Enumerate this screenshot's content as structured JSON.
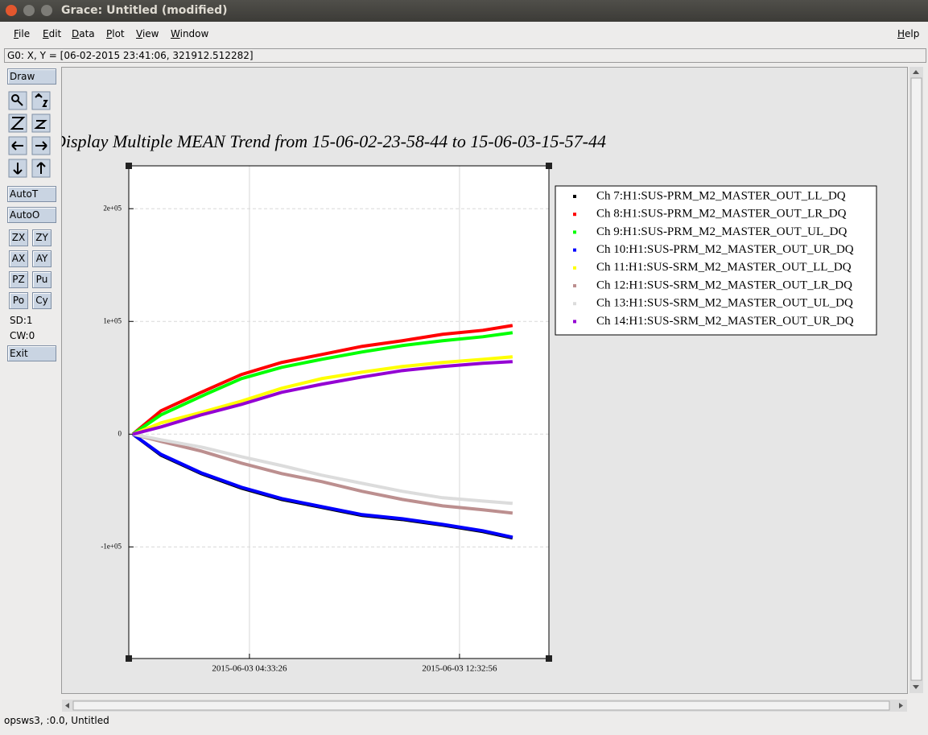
{
  "window": {
    "title": "Grace: Untitled (modified)"
  },
  "menu": [
    "File",
    "Edit",
    "Data",
    "Plot",
    "View",
    "Window"
  ],
  "help": "Help",
  "locator": "G0: X, Y = [06-02-2015 23:41:06, 321912.512282]",
  "toolbar": {
    "draw": "Draw",
    "autot": "AutoT",
    "autoo": "AutoO",
    "pairs": [
      [
        "ZX",
        "ZY"
      ],
      [
        "AX",
        "AY"
      ],
      [
        "PZ",
        "Pu"
      ],
      [
        "Po",
        "Cy"
      ]
    ],
    "sd": "SD:1",
    "cw": "CW:0",
    "exit": "Exit"
  },
  "status": "opsws3, :0.0, Untitled",
  "chart_data": {
    "type": "line",
    "title": "Display Multiple MEAN Trend from 15-06-02-23-58-44 to 15-06-03-15-57-44",
    "x": [
      "2015-06-03 00:07:11",
      "2015-06-03 01:11:28",
      "2015-06-03 02:43:18",
      "2015-06-03 04:15:08",
      "2015-06-03 05:46:58",
      "2015-06-03 07:18:48",
      "2015-06-03 08:50:38",
      "2015-06-03 10:22:28",
      "2015-06-03 11:54:18",
      "2015-06-03 13:26:08",
      "2015-06-03 14:34:05"
    ],
    "xlim": [
      "2015-06-02 23:58:00",
      "2015-06-03 15:57:00"
    ],
    "xticks": [
      "2015-06-03 04:33:26",
      "2015-06-03 12:32:56"
    ],
    "ylim": [
      -199000,
      238000
    ],
    "yticks": [
      {
        "value": -100000,
        "label": "-1e+05"
      },
      0,
      {
        "value": 100000,
        "label": "1e+05"
      },
      {
        "value": 200000,
        "label": "2e+05"
      }
    ],
    "grid": true,
    "legend": "right",
    "series": [
      {
        "name": "Ch 7:H1:SUS-PRM_M2_MASTER_OUT_LL_DQ",
        "color": "#000000",
        "values": [
          0,
          -18600,
          -35000,
          -47900,
          -57900,
          -65000,
          -72100,
          -75700,
          -80700,
          -86400,
          -92100
        ]
      },
      {
        "name": "Ch 8:H1:SUS-PRM_M2_MASTER_OUT_LR_DQ",
        "color": "#ff0000",
        "values": [
          0,
          20700,
          37100,
          52900,
          63600,
          70700,
          77900,
          82900,
          88600,
          92100,
          96400
        ]
      },
      {
        "name": "Ch 9:H1:SUS-PRM_M2_MASTER_OUT_UL_DQ",
        "color": "#00ff00",
        "values": [
          0,
          17100,
          33600,
          49300,
          59300,
          66400,
          72900,
          78600,
          82900,
          86400,
          90000
        ]
      },
      {
        "name": "Ch 10:H1:SUS-PRM_M2_MASTER_OUT_UR_DQ",
        "color": "#0000ff",
        "values": [
          0,
          -17900,
          -34300,
          -47100,
          -57100,
          -64300,
          -71400,
          -75000,
          -80000,
          -85700,
          -91400
        ]
      },
      {
        "name": "Ch 11:H1:SUS-SRM_M2_MASTER_OUT_LL_DQ",
        "color": "#ffff00",
        "values": [
          0,
          10000,
          19300,
          29300,
          40700,
          49300,
          55000,
          60000,
          63600,
          66400,
          68600
        ]
      },
      {
        "name": "Ch 12:H1:SUS-SRM_M2_MASTER_OUT_LR_DQ",
        "color": "#bc8f8f",
        "values": [
          0,
          -6400,
          -15000,
          -25700,
          -35000,
          -42100,
          -50700,
          -57900,
          -63600,
          -67100,
          -70000
        ]
      },
      {
        "name": "Ch 13:H1:SUS-SRM_M2_MASTER_OUT_UL_DQ",
        "color": "#dcdcdc",
        "values": [
          0,
          -5000,
          -11400,
          -20000,
          -27900,
          -36400,
          -43600,
          -50700,
          -56400,
          -59300,
          -61400
        ]
      },
      {
        "name": "Ch 14:H1:SUS-SRM_M2_MASTER_OUT_UR_DQ",
        "color": "#9400d3",
        "values": [
          0,
          6400,
          17100,
          26400,
          37100,
          44300,
          50700,
          56400,
          60000,
          62900,
          64300
        ]
      }
    ]
  }
}
